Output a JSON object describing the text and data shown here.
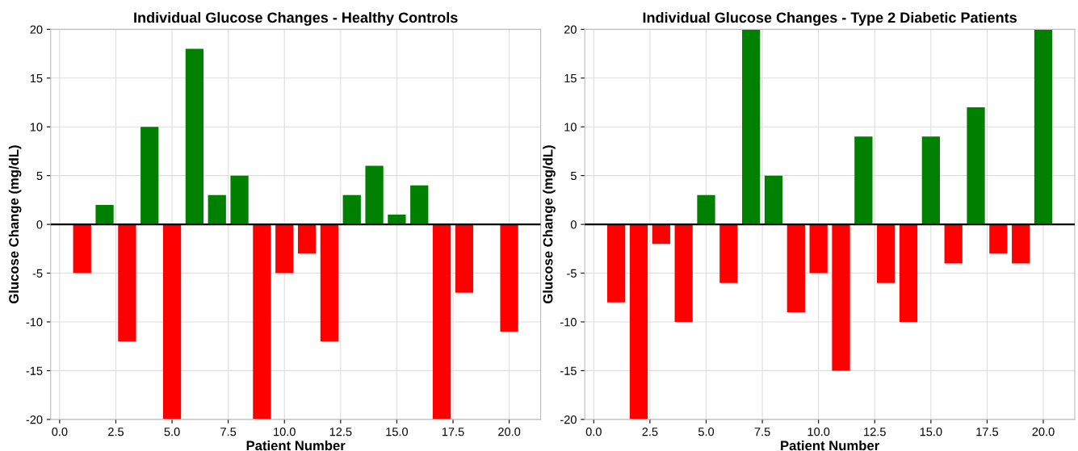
{
  "chart_data": [
    {
      "type": "bar",
      "title": "Individual Glucose Changes - Healthy Controls",
      "xlabel": "Patient Number",
      "ylabel": "Glucose Change (mg/dL)",
      "x": [
        1,
        2,
        3,
        4,
        5,
        6,
        7,
        8,
        9,
        10,
        11,
        12,
        13,
        14,
        15,
        16,
        17,
        18,
        19,
        20
      ],
      "values": [
        -5,
        2,
        -12,
        10,
        -20,
        18,
        3,
        5,
        -20,
        -5,
        -3,
        -12,
        3,
        6,
        1,
        4,
        -20,
        -7,
        0,
        -11
      ],
      "colors": [
        "#ff0000",
        "#008000",
        "#ff0000",
        "#008000",
        "#ff0000",
        "#008000",
        "#008000",
        "#008000",
        "#ff0000",
        "#ff0000",
        "#ff0000",
        "#ff0000",
        "#008000",
        "#008000",
        "#008000",
        "#008000",
        "#ff0000",
        "#ff0000",
        "#ff0000",
        "#ff0000"
      ],
      "xlim": [
        -0.4,
        21.4
      ],
      "ylim": [
        -20,
        20
      ],
      "xticks": [
        {
          "value": 0,
          "label": "0.0"
        },
        {
          "value": 2.5,
          "label": "2.5"
        },
        {
          "value": 5,
          "label": "5.0"
        },
        {
          "value": 7.5,
          "label": "7.5"
        },
        {
          "value": 10,
          "label": "10.0"
        },
        {
          "value": 12.5,
          "label": "12.5"
        },
        {
          "value": 15,
          "label": "15.0"
        },
        {
          "value": 17.5,
          "label": "17.5"
        },
        {
          "value": 20,
          "label": "20.0"
        }
      ],
      "yticks": [
        -20,
        -15,
        -10,
        -5,
        0,
        5,
        10,
        15,
        20
      ],
      "ref_lines": [
        {
          "axis": "y",
          "value": 0,
          "color": "#000000"
        }
      ],
      "grid": true
    },
    {
      "type": "bar",
      "title": "Individual Glucose Changes - Type 2 Diabetic Patients",
      "xlabel": "Patient Number",
      "ylabel": "Glucose Change (mg/dL)",
      "x": [
        1,
        2,
        3,
        4,
        5,
        6,
        7,
        8,
        9,
        10,
        11,
        12,
        13,
        14,
        15,
        16,
        17,
        18,
        19,
        20
      ],
      "values": [
        -8,
        -20,
        -2,
        -10,
        3,
        -6,
        20,
        5,
        -9,
        -5,
        -15,
        9,
        -6,
        -10,
        9,
        -4,
        12,
        -3,
        -4,
        20
      ],
      "colors": [
        "#ff0000",
        "#ff0000",
        "#ff0000",
        "#ff0000",
        "#008000",
        "#ff0000",
        "#008000",
        "#008000",
        "#ff0000",
        "#ff0000",
        "#ff0000",
        "#008000",
        "#ff0000",
        "#ff0000",
        "#008000",
        "#ff0000",
        "#008000",
        "#ff0000",
        "#ff0000",
        "#008000"
      ],
      "xlim": [
        -0.4,
        21.4
      ],
      "ylim": [
        -20,
        20
      ],
      "xticks": [
        {
          "value": 0,
          "label": "0.0"
        },
        {
          "value": 2.5,
          "label": "2.5"
        },
        {
          "value": 5,
          "label": "5.0"
        },
        {
          "value": 7.5,
          "label": "7.5"
        },
        {
          "value": 10,
          "label": "10.0"
        },
        {
          "value": 12.5,
          "label": "12.5"
        },
        {
          "value": 15,
          "label": "15.0"
        },
        {
          "value": 17.5,
          "label": "17.5"
        },
        {
          "value": 20,
          "label": "20.0"
        }
      ],
      "yticks": [
        -20,
        -15,
        -10,
        -5,
        0,
        5,
        10,
        15,
        20
      ],
      "ref_lines": [
        {
          "axis": "y",
          "value": 0,
          "color": "#000000"
        }
      ],
      "grid": true
    }
  ]
}
